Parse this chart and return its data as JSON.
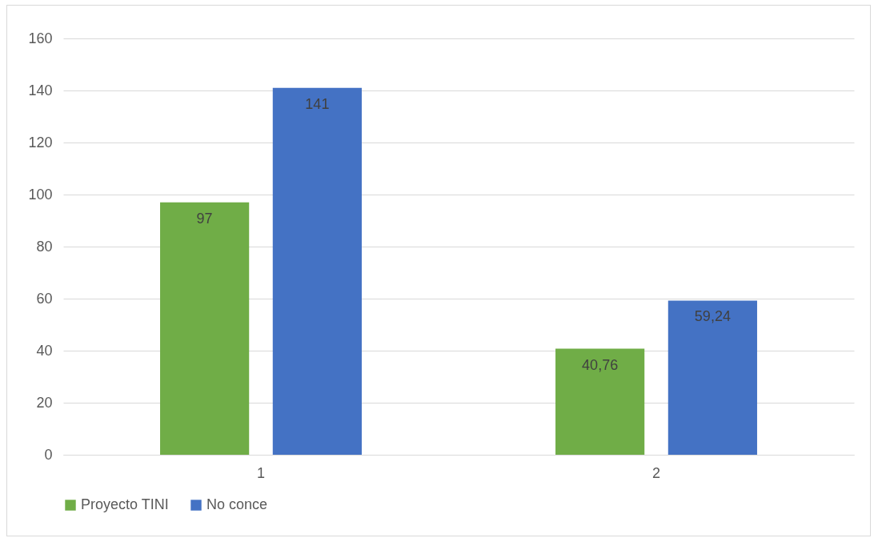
{
  "chart_data": {
    "type": "bar",
    "categories": [
      "1",
      "2"
    ],
    "series": [
      {
        "name": "Proyecto TINI",
        "color": "#70ad47",
        "values": [
          97,
          40.76
        ],
        "value_labels": [
          "97",
          "40,76"
        ]
      },
      {
        "name": "No conce",
        "color": "#4472c4",
        "values": [
          141,
          59.24
        ],
        "value_labels": [
          "141",
          "59,24"
        ]
      }
    ],
    "ylim": [
      0,
      160
    ],
    "yticks": [
      0,
      20,
      40,
      60,
      80,
      100,
      120,
      140,
      160
    ],
    "grid": "y",
    "legend": "bottom"
  }
}
